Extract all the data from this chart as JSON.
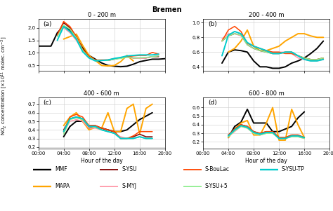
{
  "title": "Bremen",
  "panels": [
    {
      "label": "(a)",
      "title": "0 - 200 m",
      "ylim": [
        0.3,
        2.35
      ],
      "yticks": [
        0.5,
        1.0,
        1.5,
        2.0
      ]
    },
    {
      "label": "(b)",
      "title": "200 - 400 m",
      "ylim": [
        0.35,
        1.05
      ],
      "yticks": [
        0.4,
        0.6,
        0.8,
        1.0
      ]
    },
    {
      "label": "(c)",
      "title": "400 - 600 m",
      "ylim": [
        0.18,
        0.78
      ],
      "yticks": [
        0.2,
        0.3,
        0.4,
        0.5,
        0.6,
        0.7
      ]
    },
    {
      "label": "(d)",
      "title": "600 - 800 m",
      "ylim": [
        0.12,
        0.72
      ],
      "yticks": [
        0.2,
        0.3,
        0.4,
        0.5,
        0.6
      ]
    }
  ],
  "xlabel": "Hour of the day",
  "ylabel": "NO$_2$ concentration [$\\times$10$^{11}$ molec. cm$^{-3}$]",
  "xticks": [
    0,
    4,
    8,
    12,
    16,
    20
  ],
  "xticklabels": [
    "00:00",
    "04:00",
    "08:00",
    "12:00",
    "16:00",
    "20:00"
  ],
  "xlim": [
    0,
    20
  ],
  "series_order": [
    "MMF",
    "MAPA",
    "S-YSU",
    "S-MYJ",
    "S-BouLac",
    "S-YSU+5",
    "S-YSU-TP"
  ],
  "series": {
    "MMF": {
      "color": "#000000",
      "lw": 1.4
    },
    "MAPA": {
      "color": "#FFA500",
      "lw": 1.4
    },
    "S-YSU": {
      "color": "#800000",
      "lw": 1.1
    },
    "S-MYJ": {
      "color": "#FF99AA",
      "lw": 1.1
    },
    "S-BouLac": {
      "color": "#FF4500",
      "lw": 1.1
    },
    "S-YSU+5": {
      "color": "#90EE90",
      "lw": 1.1
    },
    "S-YSU-TP": {
      "color": "#00CCCC",
      "lw": 1.4
    }
  },
  "data": {
    "panel_a": {
      "MMF": [
        1.27,
        1.27,
        1.27,
        1.8,
        2.05,
        1.9,
        1.6,
        1.2,
        0.9,
        0.75,
        0.6,
        0.5,
        0.47,
        0.45,
        0.47,
        0.55,
        0.65,
        0.7,
        0.75,
        0.75,
        0.77
      ],
      "MAPA": [
        null,
        null,
        null,
        null,
        1.55,
        1.65,
        1.75,
        1.3,
        0.9,
        0.7,
        0.5,
        0.48,
        0.5,
        0.65,
        0.9,
        0.68,
        null,
        null,
        null,
        null,
        null
      ],
      "S-YSU": [
        null,
        null,
        null,
        1.75,
        2.2,
        2.0,
        1.65,
        1.15,
        0.85,
        0.7,
        0.7,
        0.7,
        0.75,
        0.8,
        0.85,
        0.8,
        0.8,
        0.8,
        0.85,
        0.85,
        null
      ],
      "S-MYJ": [
        null,
        null,
        null,
        1.7,
        2.0,
        1.8,
        1.5,
        1.1,
        0.8,
        0.7,
        0.72,
        0.72,
        0.77,
        0.8,
        0.83,
        0.8,
        0.78,
        0.8,
        0.85,
        0.9,
        null
      ],
      "S-BouLac": [
        null,
        null,
        null,
        1.7,
        2.25,
        2.05,
        1.65,
        1.15,
        0.85,
        0.72,
        0.72,
        0.72,
        0.77,
        0.8,
        0.85,
        0.88,
        0.9,
        0.9,
        1.02,
        0.95,
        null
      ],
      "S-YSU+5": [
        null,
        null,
        null,
        1.65,
        2.1,
        1.95,
        1.6,
        1.1,
        0.82,
        0.7,
        0.7,
        0.7,
        0.75,
        0.78,
        0.82,
        0.8,
        0.8,
        0.82,
        0.85,
        0.88,
        null
      ],
      "S-YSU-TP": [
        null,
        null,
        null,
        1.5,
        2.05,
        1.85,
        1.55,
        1.05,
        0.8,
        0.68,
        0.7,
        0.72,
        0.78,
        0.82,
        0.88,
        0.9,
        0.92,
        0.92,
        0.92,
        0.95,
        null
      ]
    },
    "panel_b": {
      "MMF": [
        null,
        null,
        null,
        0.45,
        0.6,
        0.63,
        0.62,
        0.6,
        0.48,
        0.4,
        0.4,
        0.38,
        0.38,
        0.4,
        0.45,
        0.48,
        0.52,
        0.58,
        0.65,
        0.75,
        null
      ],
      "MAPA": [
        null,
        null,
        null,
        null,
        0.6,
        0.65,
        0.75,
        0.9,
        0.68,
        0.62,
        0.62,
        0.65,
        0.68,
        0.75,
        0.8,
        0.85,
        0.85,
        0.82,
        0.8,
        0.8,
        null
      ],
      "S-YSU": [
        null,
        null,
        null,
        0.75,
        0.82,
        0.85,
        0.83,
        0.7,
        0.65,
        0.62,
        0.6,
        0.58,
        0.58,
        0.6,
        0.6,
        0.55,
        0.52,
        0.5,
        0.5,
        0.52,
        null
      ],
      "S-MYJ": [
        null,
        null,
        null,
        0.78,
        0.85,
        0.85,
        0.82,
        0.72,
        0.68,
        0.65,
        0.62,
        0.6,
        0.6,
        0.6,
        0.58,
        0.52,
        0.5,
        0.48,
        0.48,
        0.5,
        null
      ],
      "S-BouLac": [
        null,
        null,
        null,
        0.75,
        0.9,
        0.95,
        0.88,
        0.72,
        0.68,
        0.65,
        0.62,
        0.6,
        0.6,
        0.58,
        0.58,
        0.55,
        0.52,
        0.5,
        0.5,
        0.52,
        null
      ],
      "S-YSU+5": [
        null,
        null,
        null,
        0.75,
        0.82,
        0.85,
        0.83,
        0.7,
        0.65,
        0.62,
        0.6,
        0.58,
        0.58,
        0.6,
        0.6,
        0.55,
        0.52,
        0.5,
        0.5,
        0.52,
        null
      ],
      "S-YSU-TP": [
        null,
        null,
        null,
        0.55,
        0.83,
        0.88,
        0.85,
        0.73,
        0.68,
        0.65,
        0.62,
        0.58,
        0.58,
        0.6,
        0.6,
        0.55,
        0.5,
        0.48,
        0.48,
        0.5,
        null
      ]
    },
    "panel_c": {
      "MMF": [
        null,
        null,
        null,
        null,
        0.32,
        0.44,
        0.5,
        0.5,
        0.42,
        0.44,
        0.42,
        0.4,
        0.38,
        0.38,
        0.4,
        0.46,
        0.52,
        0.56,
        0.6,
        null,
        null
      ],
      "MAPA": [
        null,
        null,
        null,
        null,
        0.45,
        0.55,
        0.6,
        0.5,
        0.4,
        0.43,
        0.42,
        0.6,
        0.38,
        0.38,
        0.65,
        0.7,
        0.35,
        0.65,
        0.7,
        null,
        null
      ],
      "S-YSU": [
        null,
        null,
        null,
        null,
        0.4,
        0.53,
        0.55,
        0.53,
        0.45,
        0.45,
        0.42,
        0.4,
        0.38,
        0.3,
        0.3,
        0.32,
        0.35,
        0.32,
        0.32,
        null,
        null
      ],
      "S-MYJ": [
        null,
        null,
        null,
        null,
        0.37,
        0.5,
        0.52,
        0.5,
        0.42,
        0.42,
        0.4,
        0.38,
        0.36,
        0.32,
        0.3,
        0.3,
        0.32,
        0.3,
        0.3,
        null,
        null
      ],
      "S-BouLac": [
        null,
        null,
        null,
        null,
        0.38,
        0.55,
        0.58,
        0.55,
        0.45,
        0.45,
        0.42,
        0.4,
        0.38,
        0.3,
        0.3,
        0.33,
        0.38,
        0.38,
        0.38,
        null,
        null
      ],
      "S-YSU+5": [
        null,
        null,
        null,
        null,
        0.35,
        0.52,
        0.54,
        0.52,
        0.44,
        0.43,
        0.4,
        0.38,
        0.36,
        0.3,
        0.3,
        0.3,
        0.32,
        0.3,
        0.3,
        null,
        null
      ],
      "S-YSU-TP": [
        null,
        null,
        null,
        null,
        0.38,
        0.53,
        0.55,
        0.53,
        0.44,
        0.44,
        0.4,
        0.38,
        0.36,
        0.3,
        0.3,
        0.3,
        0.32,
        0.3,
        0.3,
        null,
        null
      ]
    },
    "panel_d": {
      "MMF": [
        null,
        null,
        null,
        null,
        0.25,
        0.38,
        0.43,
        0.58,
        0.42,
        0.42,
        0.42,
        0.32,
        0.32,
        0.35,
        0.38,
        0.48,
        0.55,
        null,
        null,
        null,
        null
      ],
      "MAPA": [
        null,
        null,
        null,
        null,
        0.25,
        0.35,
        0.42,
        0.45,
        0.28,
        0.28,
        0.42,
        0.6,
        0.22,
        0.22,
        0.58,
        0.4,
        0.25,
        null,
        null,
        null,
        null
      ],
      "S-YSU": [
        null,
        null,
        null,
        null,
        0.28,
        0.35,
        0.4,
        0.38,
        0.32,
        0.3,
        0.32,
        0.32,
        0.25,
        0.25,
        0.28,
        0.28,
        0.25,
        null,
        null,
        null,
        null
      ],
      "S-MYJ": [
        null,
        null,
        null,
        null,
        0.26,
        0.32,
        0.38,
        0.36,
        0.3,
        0.28,
        0.3,
        0.3,
        0.25,
        0.24,
        0.26,
        0.26,
        0.24,
        null,
        null,
        null,
        null
      ],
      "S-BouLac": [
        null,
        null,
        null,
        null,
        0.28,
        0.35,
        0.4,
        0.38,
        0.32,
        0.3,
        0.32,
        0.32,
        0.25,
        0.25,
        0.28,
        0.28,
        0.25,
        null,
        null,
        null,
        null
      ],
      "S-YSU+5": [
        null,
        null,
        null,
        null,
        0.26,
        0.33,
        0.38,
        0.36,
        0.3,
        0.28,
        0.3,
        0.3,
        0.24,
        0.24,
        0.26,
        0.26,
        0.24,
        null,
        null,
        null,
        null
      ],
      "S-YSU-TP": [
        null,
        null,
        null,
        null,
        0.27,
        0.34,
        0.39,
        0.37,
        0.31,
        0.29,
        0.31,
        0.31,
        0.24,
        0.24,
        0.27,
        0.27,
        0.25,
        null,
        null,
        null,
        null
      ]
    }
  },
  "legend_cols": [
    [
      {
        "label": "MMF",
        "color": "#000000",
        "lw": 1.4
      },
      {
        "label": "MAPA",
        "color": "#FFA500",
        "lw": 1.4
      }
    ],
    [
      {
        "label": "S-YSU",
        "color": "#800000",
        "lw": 1.1
      },
      {
        "label": "S-MYJ",
        "color": "#FF99AA",
        "lw": 1.1
      }
    ],
    [
      {
        "label": "S-BouLac",
        "color": "#FF4500",
        "lw": 1.1
      },
      {
        "label": "S-YSU+5",
        "color": "#90EE90",
        "lw": 1.1
      }
    ],
    [
      {
        "label": "S-YSU-TP",
        "color": "#00CCCC",
        "lw": 1.4
      }
    ]
  ]
}
